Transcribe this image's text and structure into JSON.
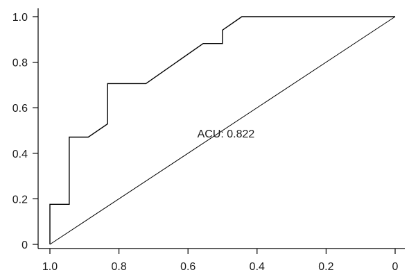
{
  "chart_data": {
    "type": "line",
    "title": "",
    "xlabel": "",
    "ylabel": "",
    "xlim": [
      1.0,
      0.0
    ],
    "ylim": [
      0,
      1.0
    ],
    "x_reversed": true,
    "grid": false,
    "x_ticks": [
      1.0,
      0.8,
      0.6,
      0.4,
      0.2,
      0
    ],
    "x_tick_labels": [
      "1.0",
      "0.8",
      "0.6",
      "0.4",
      "0.2",
      "0"
    ],
    "y_ticks": [
      0,
      0.2,
      0.4,
      0.6,
      0.8,
      1.0
    ],
    "y_tick_labels": [
      "0",
      "0.2",
      "0.4",
      "0.6",
      "0.8",
      "1.0"
    ],
    "series": [
      {
        "x": [
          1.0,
          1.0,
          0.944,
          0.944,
          0.889,
          0.833,
          0.833,
          0.722,
          0.556,
          0.5,
          0.5,
          0.444,
          0.0
        ],
        "y": [
          0.0,
          0.176,
          0.176,
          0.471,
          0.471,
          0.529,
          0.706,
          0.706,
          0.882,
          0.882,
          0.941,
          1.0,
          1.0
        ]
      },
      {
        "x": [
          1.0,
          0.0
        ],
        "y": [
          0.0,
          1.0
        ]
      }
    ],
    "annotations": [
      {
        "text": "ACU: 0.822",
        "x": 0.49,
        "y": 0.47
      }
    ]
  }
}
